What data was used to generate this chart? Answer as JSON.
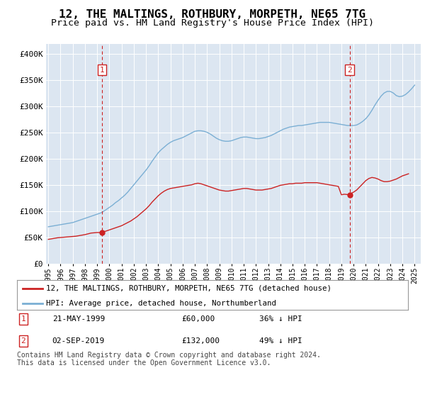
{
  "title": "12, THE MALTINGS, ROTHBURY, MORPETH, NE65 7TG",
  "subtitle": "Price paid vs. HM Land Registry's House Price Index (HPI)",
  "title_fontsize": 11.5,
  "subtitle_fontsize": 9.5,
  "bg_color": "#dce6f1",
  "legend_label_red": "12, THE MALTINGS, ROTHBURY, MORPETH, NE65 7TG (detached house)",
  "legend_label_blue": "HPI: Average price, detached house, Northumberland",
  "footer": "Contains HM Land Registry data © Crown copyright and database right 2024.\nThis data is licensed under the Open Government Licence v3.0.",
  "purchase1_year": 1999.38,
  "purchase1_price": 60000,
  "purchase1_label": "1",
  "purchase1_date": "21-MAY-1999",
  "purchase1_pct": "36% ↓ HPI",
  "purchase2_year": 2019.67,
  "purchase2_price": 132000,
  "purchase2_label": "2",
  "purchase2_date": "02-SEP-2019",
  "purchase2_pct": "49% ↓ HPI",
  "ylim": [
    0,
    420000
  ],
  "xlim_start": 1994.8,
  "xlim_end": 2025.5,
  "hpi_years": [
    1995.0,
    1995.25,
    1995.5,
    1995.75,
    1996.0,
    1996.25,
    1996.5,
    1996.75,
    1997.0,
    1997.25,
    1997.5,
    1997.75,
    1998.0,
    1998.25,
    1998.5,
    1998.75,
    1999.0,
    1999.25,
    1999.5,
    1999.75,
    2000.0,
    2000.25,
    2000.5,
    2000.75,
    2001.0,
    2001.25,
    2001.5,
    2001.75,
    2002.0,
    2002.25,
    2002.5,
    2002.75,
    2003.0,
    2003.25,
    2003.5,
    2003.75,
    2004.0,
    2004.25,
    2004.5,
    2004.75,
    2005.0,
    2005.25,
    2005.5,
    2005.75,
    2006.0,
    2006.25,
    2006.5,
    2006.75,
    2007.0,
    2007.25,
    2007.5,
    2007.75,
    2008.0,
    2008.25,
    2008.5,
    2008.75,
    2009.0,
    2009.25,
    2009.5,
    2009.75,
    2010.0,
    2010.25,
    2010.5,
    2010.75,
    2011.0,
    2011.25,
    2011.5,
    2011.75,
    2012.0,
    2012.25,
    2012.5,
    2012.75,
    2013.0,
    2013.25,
    2013.5,
    2013.75,
    2014.0,
    2014.25,
    2014.5,
    2014.75,
    2015.0,
    2015.25,
    2015.5,
    2015.75,
    2016.0,
    2016.25,
    2016.5,
    2016.75,
    2017.0,
    2017.25,
    2017.5,
    2017.75,
    2018.0,
    2018.25,
    2018.5,
    2018.75,
    2019.0,
    2019.25,
    2019.5,
    2019.75,
    2020.0,
    2020.25,
    2020.5,
    2020.75,
    2021.0,
    2021.25,
    2021.5,
    2021.75,
    2022.0,
    2022.25,
    2022.5,
    2022.75,
    2023.0,
    2023.25,
    2023.5,
    2023.75,
    2024.0,
    2024.25,
    2024.5,
    2024.75,
    2025.0
  ],
  "hpi_values": [
    71000,
    72000,
    73000,
    74000,
    75000,
    76000,
    77000,
    78000,
    79000,
    81000,
    83000,
    85000,
    87000,
    89000,
    91000,
    93000,
    95000,
    97000,
    100000,
    104000,
    108000,
    112000,
    117000,
    121000,
    126000,
    131000,
    137000,
    144000,
    151000,
    158000,
    165000,
    172000,
    179000,
    187000,
    196000,
    204000,
    212000,
    218000,
    223000,
    228000,
    232000,
    235000,
    237000,
    239000,
    241000,
    244000,
    247000,
    250000,
    253000,
    254000,
    254000,
    253000,
    251000,
    248000,
    244000,
    240000,
    237000,
    235000,
    234000,
    234000,
    235000,
    237000,
    239000,
    241000,
    242000,
    242000,
    241000,
    240000,
    239000,
    239000,
    240000,
    241000,
    243000,
    245000,
    248000,
    251000,
    254000,
    257000,
    259000,
    261000,
    262000,
    263000,
    264000,
    264000,
    265000,
    266000,
    267000,
    268000,
    269000,
    270000,
    270000,
    270000,
    270000,
    269000,
    268000,
    267000,
    266000,
    265000,
    264000,
    264000,
    264000,
    265000,
    268000,
    272000,
    277000,
    284000,
    293000,
    303000,
    312000,
    320000,
    326000,
    329000,
    329000,
    326000,
    321000,
    319000,
    320000,
    323000,
    328000,
    334000,
    341000
  ],
  "red_years": [
    1995.0,
    1995.25,
    1995.5,
    1995.75,
    1996.0,
    1996.25,
    1996.5,
    1996.75,
    1997.0,
    1997.25,
    1997.5,
    1997.75,
    1998.0,
    1998.25,
    1998.5,
    1998.75,
    1999.0,
    1999.38,
    1999.5,
    1999.75,
    2000.0,
    2000.25,
    2000.5,
    2000.75,
    2001.0,
    2001.25,
    2001.5,
    2001.75,
    2002.0,
    2002.25,
    2002.5,
    2002.75,
    2003.0,
    2003.25,
    2003.5,
    2003.75,
    2004.0,
    2004.25,
    2004.5,
    2004.75,
    2005.0,
    2005.25,
    2005.5,
    2005.75,
    2006.0,
    2006.25,
    2006.5,
    2006.75,
    2007.0,
    2007.25,
    2007.5,
    2007.75,
    2008.0,
    2008.25,
    2008.5,
    2008.75,
    2009.0,
    2009.25,
    2009.5,
    2009.75,
    2010.0,
    2010.25,
    2010.5,
    2010.75,
    2011.0,
    2011.25,
    2011.5,
    2011.75,
    2012.0,
    2012.25,
    2012.5,
    2012.75,
    2013.0,
    2013.25,
    2013.5,
    2013.75,
    2014.0,
    2014.25,
    2014.5,
    2014.75,
    2015.0,
    2015.25,
    2015.5,
    2015.75,
    2016.0,
    2016.25,
    2016.5,
    2016.75,
    2017.0,
    2017.25,
    2017.5,
    2017.75,
    2018.0,
    2018.25,
    2018.5,
    2018.75,
    2019.0,
    2019.25,
    2019.67,
    2019.75,
    2020.0,
    2020.25,
    2020.5,
    2020.75,
    2021.0,
    2021.25,
    2021.5,
    2021.75,
    2022.0,
    2022.25,
    2022.5,
    2022.75,
    2023.0,
    2023.25,
    2023.5,
    2023.75,
    2024.0,
    2024.25,
    2024.5
  ],
  "red_values": [
    47000,
    48000,
    49000,
    50000,
    50500,
    51000,
    51500,
    52000,
    52500,
    53000,
    54000,
    55000,
    56000,
    57500,
    59000,
    59500,
    60000,
    60000,
    61000,
    63000,
    65000,
    67000,
    69000,
    71000,
    73000,
    76000,
    79000,
    82000,
    86000,
    90000,
    95000,
    100000,
    105000,
    111000,
    118000,
    124000,
    130000,
    135000,
    139000,
    142000,
    144000,
    145000,
    146000,
    147000,
    148000,
    149000,
    150000,
    151000,
    153000,
    154000,
    153000,
    151000,
    149000,
    147000,
    145000,
    143000,
    141000,
    140000,
    139000,
    139000,
    140000,
    141000,
    142000,
    143000,
    144000,
    144000,
    143000,
    142000,
    141000,
    141000,
    141000,
    142000,
    143000,
    144000,
    146000,
    148000,
    150000,
    151000,
    152000,
    153000,
    153000,
    154000,
    154000,
    154000,
    155000,
    155000,
    155000,
    155000,
    155000,
    154000,
    153000,
    152000,
    151000,
    150000,
    149000,
    148000,
    132000,
    133000,
    132000,
    134000,
    137000,
    141000,
    147000,
    153000,
    159000,
    163000,
    165000,
    164000,
    162000,
    159000,
    157000,
    157000,
    158000,
    160000,
    162000,
    165000,
    168000,
    170000,
    172000
  ]
}
